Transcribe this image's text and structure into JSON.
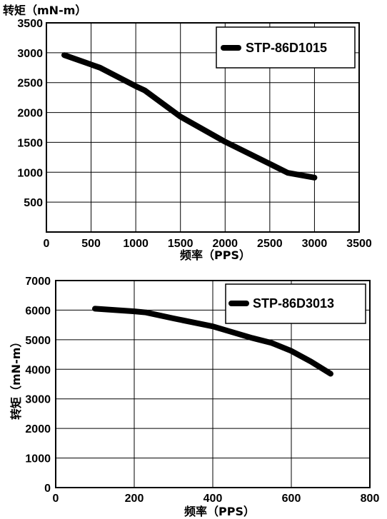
{
  "chart_data": [
    {
      "type": "line",
      "ylabel": "转矩（mN-m）",
      "xlabel": "频率（PPS）",
      "xlim": [
        0,
        3500
      ],
      "ylim": [
        0,
        3500
      ],
      "x_ticks": [
        0,
        500,
        1000,
        1500,
        2000,
        2500,
        3000,
        3500
      ],
      "y_ticks": [
        500,
        1000,
        1500,
        2000,
        2500,
        3000,
        3500
      ],
      "grid": true,
      "legend_position": "top-right",
      "series": [
        {
          "name": "STP-86D1015",
          "x": [
            200,
            600,
            1000,
            1100,
            1500,
            2000,
            2500,
            2700,
            3000
          ],
          "y": [
            2960,
            2750,
            2440,
            2370,
            1930,
            1510,
            1140,
            990,
            910
          ]
        }
      ]
    },
    {
      "type": "line",
      "ylabel": "转矩（mN-m）",
      "xlabel": "频率（PPS）",
      "xlim": [
        0,
        800
      ],
      "ylim": [
        0,
        7000
      ],
      "x_ticks": [
        0,
        200,
        400,
        600,
        800
      ],
      "y_ticks": [
        0,
        1000,
        2000,
        3000,
        4000,
        5000,
        6000,
        7000
      ],
      "grid": true,
      "legend_position": "top-right",
      "series": [
        {
          "name": "STP-86D3013",
          "x": [
            100,
            200,
            230,
            300,
            400,
            500,
            550,
            600,
            650,
            700
          ],
          "y": [
            6050,
            5960,
            5920,
            5720,
            5450,
            5060,
            4890,
            4620,
            4260,
            3850
          ]
        }
      ]
    }
  ]
}
